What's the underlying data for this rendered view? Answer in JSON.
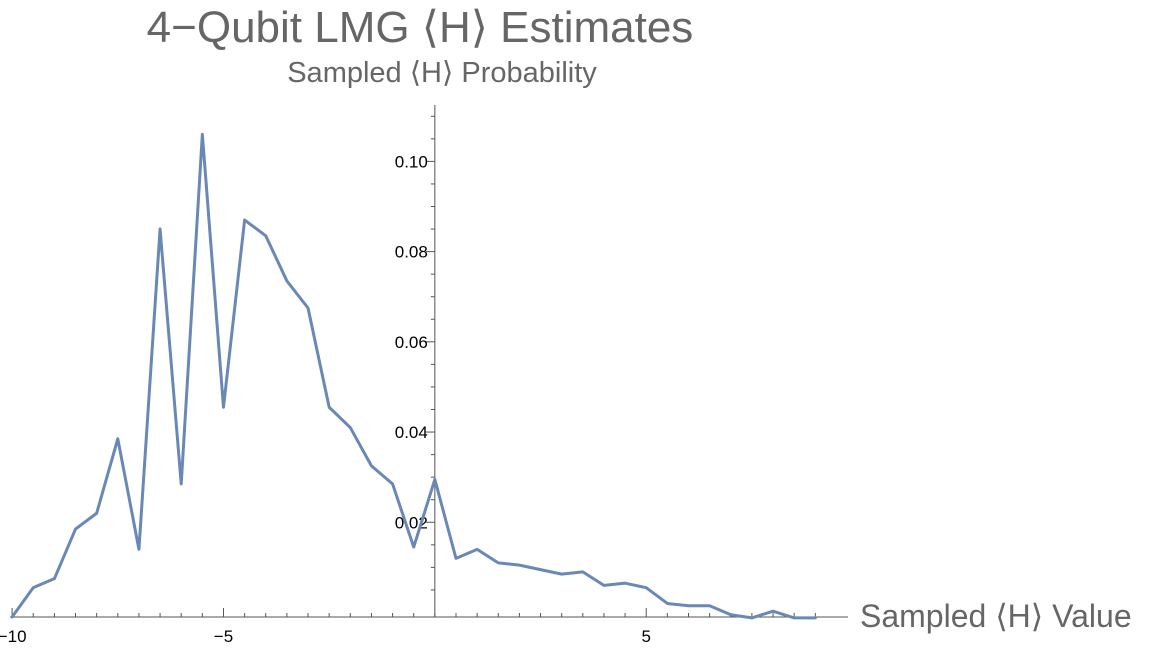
{
  "chart_data": {
    "type": "line",
    "title": "4−Qubit LMG ⟨H⟩ Estimates",
    "subtitle": "Sampled ⟨H⟩ Probability",
    "xlabel": "Sampled ⟨H⟩ Value",
    "ylabel": "",
    "xlim": [
      -10.05,
      9.3
    ],
    "ylim": [
      -0.001,
      0.1125
    ],
    "x_ticks": [
      {
        "value": -10,
        "label": "−10"
      },
      {
        "value": -5,
        "label": "−5"
      },
      {
        "value": 5,
        "label": "5"
      }
    ],
    "y_ticks": [
      {
        "value": 0.02,
        "label": "0.02"
      },
      {
        "value": 0.04,
        "label": "0.04"
      },
      {
        "value": 0.06,
        "label": "0.06"
      },
      {
        "value": 0.08,
        "label": "0.08"
      },
      {
        "value": 0.1,
        "label": "0.10"
      }
    ],
    "x_minor_step": 0.5,
    "y_minor_step": 0.005,
    "grid": false,
    "colors": {
      "series": "#6a88b6"
    },
    "series": [
      {
        "x": [
          -10,
          -9.5,
          -9,
          -8.5,
          -8,
          -7.5,
          -7,
          -6.5,
          -6,
          -5.5,
          -5,
          -4.5,
          -4,
          -3.5,
          -3,
          -2.5,
          -2,
          -1.5,
          -1,
          -0.5,
          0,
          0.5,
          1,
          1.5,
          2,
          2.5,
          3,
          3.5,
          4,
          4.5,
          5,
          5.5,
          6,
          6.5,
          7,
          7.5,
          8,
          8.5,
          9
        ],
        "values": [
          -0.001,
          0.0055,
          0.0075,
          0.0185,
          0.022,
          0.0385,
          0.014,
          0.085,
          0.0285,
          0.106,
          0.0455,
          0.087,
          0.0835,
          0.0735,
          0.0675,
          0.0455,
          0.041,
          0.0325,
          0.0285,
          0.0145,
          0.0295,
          0.012,
          0.014,
          0.011,
          0.0105,
          0.0095,
          0.0085,
          0.009,
          0.006,
          0.0065,
          0.0055,
          0.002,
          0.0015,
          0.0015,
          -0.0005,
          -0.0012,
          0.0003,
          -0.0012,
          -0.0012
        ]
      }
    ]
  }
}
